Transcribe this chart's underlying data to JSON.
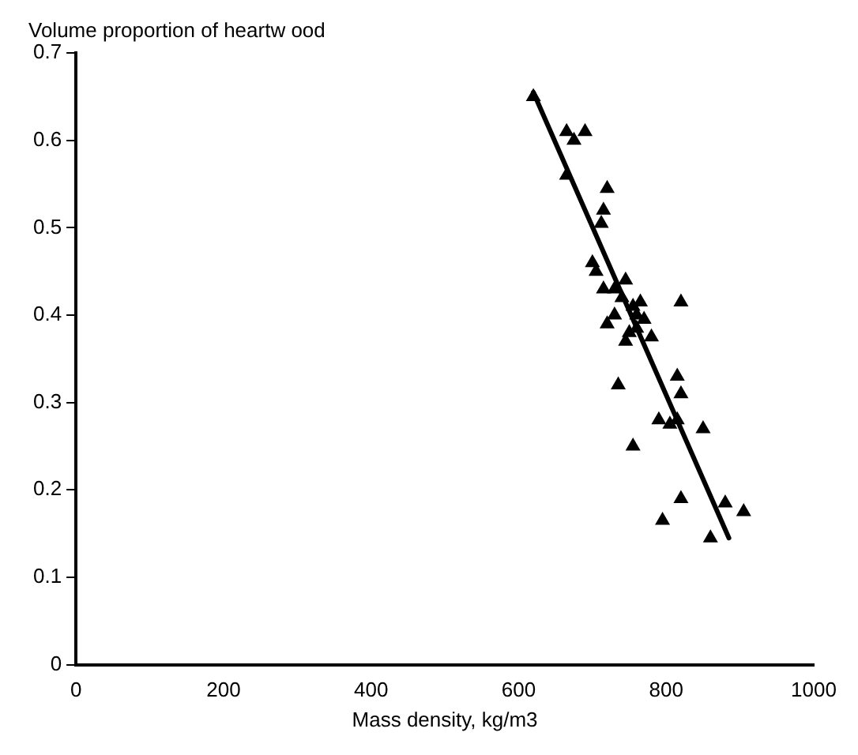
{
  "chart_data": {
    "type": "scatter",
    "xlabel": "Mass density, kg/m3",
    "ylabel": "Volume proportion of heartw ood",
    "xlim": [
      0,
      1000
    ],
    "xticks": [
      0,
      200,
      400,
      600,
      800,
      1000
    ],
    "ylim": [
      0,
      0.7
    ],
    "yticks": [
      0,
      0.1,
      0.2,
      0.3,
      0.4,
      0.5,
      0.6,
      0.7
    ],
    "grid": false,
    "legend": false,
    "series": [
      {
        "color": "#000000",
        "marker": "triangle",
        "x": [
          620,
          665,
          690,
          675,
          665,
          720,
          715,
          712,
          700,
          705,
          715,
          730,
          745,
          740,
          755,
          765,
          720,
          760,
          770,
          750,
          745,
          780,
          820,
          735,
          815,
          820,
          790,
          805,
          815,
          755,
          850,
          820,
          795,
          860,
          880,
          905,
          730,
          760
        ],
        "values": [
          0.65,
          0.61,
          0.61,
          0.6,
          0.56,
          0.545,
          0.52,
          0.505,
          0.46,
          0.45,
          0.43,
          0.43,
          0.44,
          0.42,
          0.41,
          0.415,
          0.39,
          0.4,
          0.395,
          0.38,
          0.37,
          0.375,
          0.415,
          0.32,
          0.33,
          0.31,
          0.28,
          0.275,
          0.28,
          0.25,
          0.27,
          0.19,
          0.165,
          0.145,
          0.185,
          0.175,
          0.4,
          0.385
        ]
      },
      {
        "type": "line",
        "color": "#000000",
        "x": [
          620,
          885
        ],
        "values": [
          0.655,
          0.145
        ]
      }
    ]
  }
}
